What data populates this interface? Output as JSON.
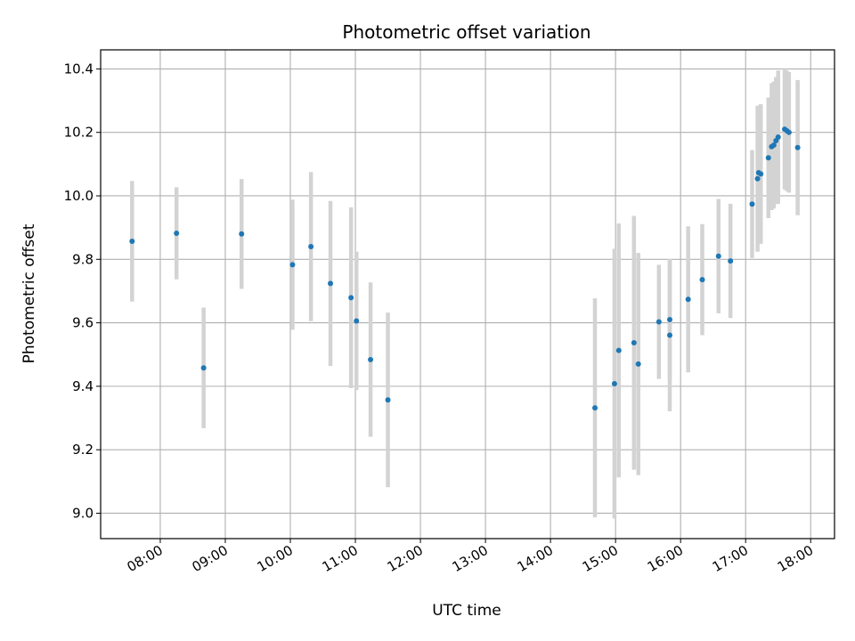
{
  "chart_data": {
    "type": "scatter",
    "title": "Photometric offset variation",
    "xlabel": "UTC time",
    "ylabel": "Photometric offset",
    "x_tick_labels": [
      "08:00",
      "09:00",
      "10:00",
      "11:00",
      "12:00",
      "13:00",
      "14:00",
      "15:00",
      "16:00",
      "17:00",
      "18:00"
    ],
    "y_tick_labels": [
      "9.0",
      "9.2",
      "9.4",
      "9.6",
      "9.8",
      "10.0",
      "10.2",
      "10.4"
    ],
    "y_ticks": [
      9.0,
      9.2,
      9.4,
      9.6,
      9.8,
      10.0,
      10.2,
      10.4
    ],
    "xlim": [
      "07:05",
      "18:22"
    ],
    "ylim": [
      8.92,
      10.46
    ],
    "grid": true,
    "colors": {
      "point": "#1f77b4",
      "errorbar": "#d3d3d3",
      "grid": "#b0b0b0"
    },
    "points": [
      {
        "x": "07:34",
        "y": 9.857,
        "yerr": 0.19
      },
      {
        "x": "08:15",
        "y": 9.882,
        "yerr": 0.145
      },
      {
        "x": "08:40",
        "y": 9.458,
        "yerr": 0.19
      },
      {
        "x": "09:15",
        "y": 9.88,
        "yerr": 0.173
      },
      {
        "x": "10:02",
        "y": 9.783,
        "yerr": 0.205
      },
      {
        "x": "10:19",
        "y": 9.84,
        "yerr": 0.235
      },
      {
        "x": "10:37",
        "y": 9.724,
        "yerr": 0.26
      },
      {
        "x": "10:56",
        "y": 9.679,
        "yerr": 0.285
      },
      {
        "x": "11:01",
        "y": 9.606,
        "yerr": 0.218
      },
      {
        "x": "11:14",
        "y": 9.484,
        "yerr": 0.243
      },
      {
        "x": "11:30",
        "y": 9.357,
        "yerr": 0.275
      },
      {
        "x": "14:41",
        "y": 9.332,
        "yerr": 0.345
      },
      {
        "x": "14:59",
        "y": 9.408,
        "yerr": 0.425
      },
      {
        "x": "15:03",
        "y": 9.513,
        "yerr": 0.4
      },
      {
        "x": "15:17",
        "y": 9.537,
        "yerr": 0.4
      },
      {
        "x": "15:21",
        "y": 9.47,
        "yerr": 0.35
      },
      {
        "x": "15:40",
        "y": 9.603,
        "yerr": 0.18
      },
      {
        "x": "15:50",
        "y": 9.61,
        "yerr": 0.19
      },
      {
        "x": "15:50",
        "y": 9.561,
        "yerr": 0.24
      },
      {
        "x": "16:07",
        "y": 9.674,
        "yerr": 0.23
      },
      {
        "x": "16:20",
        "y": 9.736,
        "yerr": 0.175
      },
      {
        "x": "16:35",
        "y": 9.81,
        "yerr": 0.18
      },
      {
        "x": "16:46",
        "y": 9.795,
        "yerr": 0.18
      },
      {
        "x": "17:06",
        "y": 9.974,
        "yerr": 0.17
      },
      {
        "x": "17:11",
        "y": 10.054,
        "yerr": 0.23
      },
      {
        "x": "17:12",
        "y": 10.073,
        "yerr": 0.21
      },
      {
        "x": "17:14",
        "y": 10.069,
        "yerr": 0.22
      },
      {
        "x": "17:21",
        "y": 10.12,
        "yerr": 0.19
      },
      {
        "x": "17:24",
        "y": 10.155,
        "yerr": 0.2
      },
      {
        "x": "17:26",
        "y": 10.16,
        "yerr": 0.2
      },
      {
        "x": "17:28",
        "y": 10.174,
        "yerr": 0.2
      },
      {
        "x": "17:30",
        "y": 10.185,
        "yerr": 0.21
      },
      {
        "x": "17:36",
        "y": 10.21,
        "yerr": 0.19
      },
      {
        "x": "17:38",
        "y": 10.205,
        "yerr": 0.19
      },
      {
        "x": "17:40",
        "y": 10.2,
        "yerr": 0.19
      },
      {
        "x": "17:48",
        "y": 10.152,
        "yerr": 0.213
      }
    ]
  }
}
